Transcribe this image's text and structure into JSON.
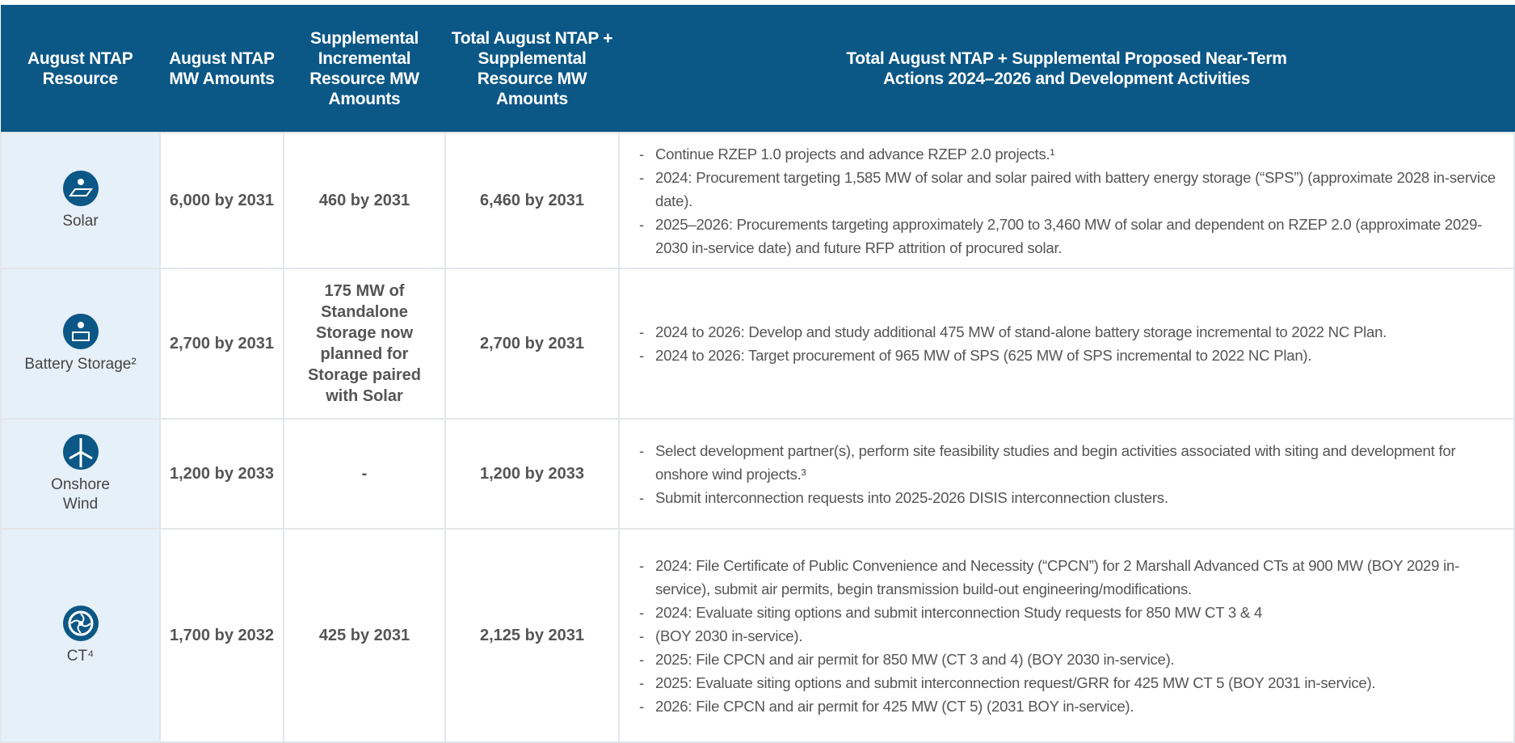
{
  "table": {
    "header": [
      "August NTAP Resource",
      "August NTAP MW Amounts",
      "Supplemental Incremental Resource MW Amounts",
      "Total August NTAP + Supplemental Resource MW Amounts",
      "Total August NTAP + Supplemental Proposed Near-Term Actions 2024–2026 and Development Activities"
    ],
    "rows": [
      {
        "resource": "Solar",
        "ntap": "6,000 by 2031",
        "supplemental": "460 by 2031",
        "total": "6,460 by 2031",
        "actions": [
          "Continue RZEP 1.0 projects and advance RZEP 2.0 projects.¹",
          "2024: Procurement targeting 1,585 MW of solar and solar paired with battery energy storage (“SPS”) (approximate 2028 in-service date).",
          "2025–2026: Procurements targeting approximately 2,700 to 3,460 MW of solar and dependent on RZEP 2.0 (approximate 2029-2030 in-service date) and future RFP attrition of procured solar."
        ]
      },
      {
        "resource": "Battery Storage²",
        "ntap": "2,700 by 2031",
        "supplemental": "175 MW of Standalone Storage now planned for Storage paired with Solar",
        "total": "2,700 by 2031",
        "actions": [
          "2024 to 2026: Develop and study additional 475 MW of stand-alone battery storage incremental to 2022 NC Plan.",
          "2024 to 2026: Target procurement of 965 MW of SPS (625 MW of SPS incremental to 2022 NC Plan)."
        ]
      },
      {
        "resource": "Onshore Wind",
        "ntap": "1,200 by 2033",
        "supplemental": "-",
        "total": "1,200 by 2033",
        "actions": [
          "Select development partner(s), perform site feasibility studies and begin activities associated with siting and development for onshore wind projects.³",
          "Submit interconnection requests into 2025-2026 DISIS interconnection clusters."
        ]
      },
      {
        "resource": "CT⁴",
        "ntap": "1,700 by 2032",
        "supplemental": "425 by 2031",
        "total": "2,125 by 2031",
        "actions": [
          "2024: File Certificate of Public Convenience and Necessity (“CPCN”) for 2 Marshall Advanced CTs at 900 MW (BOY 2029 in-service), submit air permits, begin transmission build-out engineering/modifications.",
          "2024: Evaluate siting options and submit interconnection Study requests for 850 MW CT 3 & 4",
          "(BOY 2030 in-service).",
          "2025: File CPCN and air permit for 850 MW (CT 3 and 4) (BOY 2030 in-service).",
          "2025: Evaluate siting options and submit interconnection request/GRR for 425 MW CT 5 (BOY 2031 in-service).",
          "2026: File CPCN and air permit for 425 MW (CT 5) (2031 BOY in-service)."
        ]
      }
    ]
  }
}
